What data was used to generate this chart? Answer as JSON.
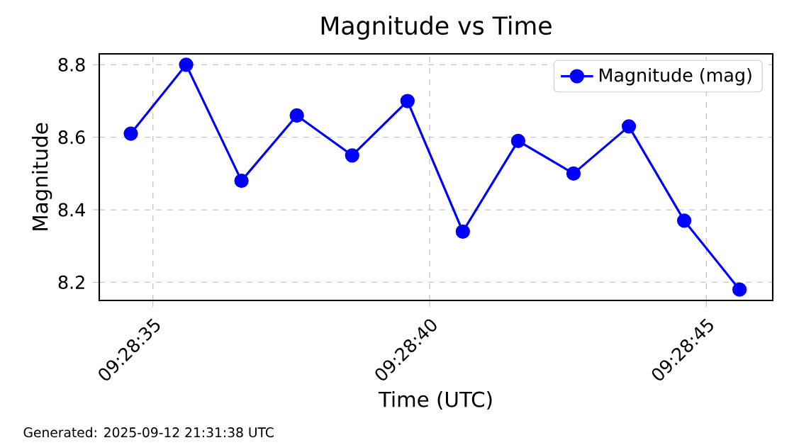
{
  "chart_data": {
    "type": "line",
    "title": "Magnitude vs Time",
    "xlabel": "Time (UTC)",
    "ylabel": "Magnitude",
    "annotations": [
      "Generated: 2025-09-12 21:31:38 UTC"
    ],
    "x": [
      9.4762778,
      9.4765556,
      9.4768333,
      9.4771111,
      9.4773889,
      9.4776667,
      9.4779444,
      9.4782222,
      9.4785,
      9.4787778,
      9.4790556,
      9.4793333
    ],
    "series": [
      {
        "name": "Magnitude (mag)",
        "color": "#0000ff",
        "values": [
          8.61,
          8.8,
          8.48,
          8.66,
          8.55,
          8.7,
          8.34,
          8.59,
          8.5,
          8.63,
          8.37,
          8.18
        ]
      }
    ],
    "xlim": [
      9.4761194,
      9.4795
    ],
    "xticks": [
      {
        "value": 9.4763889,
        "label": "09:28:35"
      },
      {
        "value": 9.4777778,
        "label": "09:28:40"
      },
      {
        "value": 9.4791667,
        "label": "09:28:45"
      }
    ],
    "ylim": [
      8.15,
      8.83
    ],
    "yticks": [
      8.2,
      8.4,
      8.6,
      8.8
    ],
    "grid": true,
    "legend": "top right",
    "marker": "circle",
    "line_style": "solid"
  }
}
